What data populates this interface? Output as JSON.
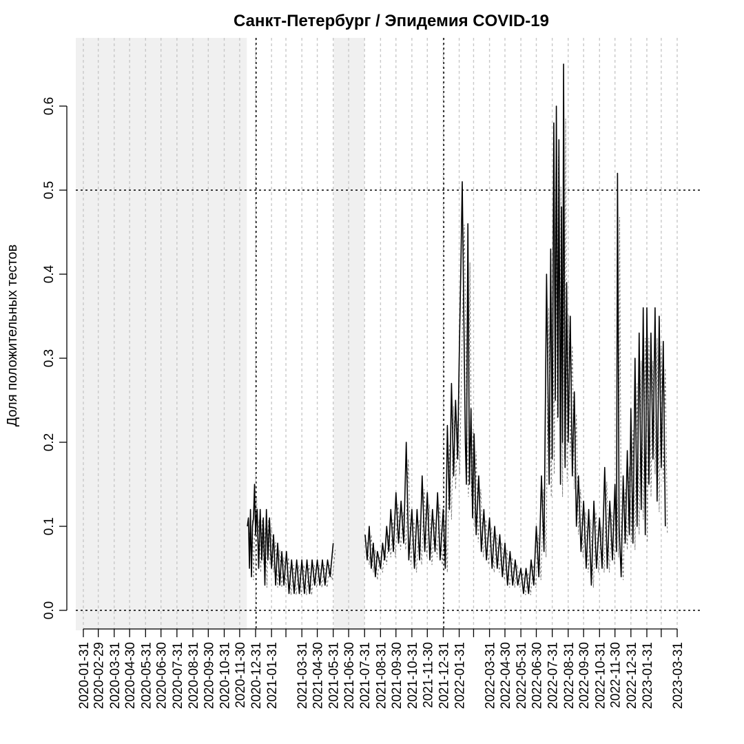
{
  "chart_data": {
    "type": "line",
    "title": "Санкт-Петербург / Эпидемия COVID-19",
    "xlabel": "",
    "ylabel": "Доля положительных тестов",
    "xlim": [
      "2020-01-31",
      "2023-03-31"
    ],
    "ylim": [
      0,
      0.65
    ],
    "y_ticks": [
      0.0,
      0.1,
      0.2,
      0.3,
      0.4,
      0.5,
      0.6
    ],
    "y_tick_labels": [
      "0.0",
      "0.1",
      "0.2",
      "0.3",
      "0.4",
      "0.5",
      "0.6"
    ],
    "x_tick_labels": [
      "2020-01-31",
      "2020-02-29",
      "2020-03-31",
      "2020-04-30",
      "2020-05-31",
      "2020-06-30",
      "2020-07-31",
      "2020-08-31",
      "2020-09-30",
      "2020-10-31",
      "2020-11-30",
      "2020-12-31",
      "2021-01-31",
      "2021-03-31",
      "2021-04-30",
      "2021-05-31",
      "2021-06-30",
      "2021-07-31",
      "2021-08-31",
      "2021-09-30",
      "2021-10-31",
      "2021-11-30",
      "2021-12-31",
      "2022-01-31",
      "2022-03-31",
      "2022-04-30",
      "2022-05-31",
      "2022-06-30",
      "2022-07-31",
      "2022-08-31",
      "2022-09-30",
      "2022-10-31",
      "2022-11-30",
      "2022-12-31",
      "2023-01-31",
      "2023-03-31"
    ],
    "shaded_ranges": [
      [
        "2020-01-31",
        "2020-12-14"
      ],
      [
        "2021-06-01",
        "2021-07-31"
      ]
    ],
    "reference_lines": {
      "horizontal": [
        0.0,
        0.5
      ],
      "vertical": [
        "2021-01-01",
        "2022-01-01"
      ]
    },
    "grid": "vertical dotted at month ends",
    "series": [
      {
        "style": "solid",
        "points": [
          [
            "2020-12-15",
            0.1
          ],
          [
            "2020-12-17",
            0.11
          ],
          [
            "2020-12-19",
            0.05
          ],
          [
            "2020-12-21",
            0.12
          ],
          [
            "2020-12-23",
            0.04
          ],
          [
            "2020-12-25",
            0.1
          ],
          [
            "2020-12-27",
            0.11
          ],
          [
            "2020-12-29",
            0.15
          ],
          [
            "2020-12-31",
            0.09
          ],
          [
            "2021-01-03",
            0.12
          ],
          [
            "2021-01-06",
            0.05
          ],
          [
            "2021-01-09",
            0.12
          ],
          [
            "2021-01-12",
            0.06
          ],
          [
            "2021-01-15",
            0.11
          ],
          [
            "2021-01-18",
            0.03
          ],
          [
            "2021-01-21",
            0.12
          ],
          [
            "2021-01-24",
            0.06
          ],
          [
            "2021-01-27",
            0.11
          ],
          [
            "2021-01-31",
            0.05
          ],
          [
            "2021-02-04",
            0.09
          ],
          [
            "2021-02-08",
            0.03
          ],
          [
            "2021-02-12",
            0.08
          ],
          [
            "2021-02-16",
            0.03
          ],
          [
            "2021-02-20",
            0.07
          ],
          [
            "2021-02-24",
            0.03
          ],
          [
            "2021-03-01",
            0.07
          ],
          [
            "2021-03-06",
            0.02
          ],
          [
            "2021-03-11",
            0.06
          ],
          [
            "2021-03-16",
            0.02
          ],
          [
            "2021-03-21",
            0.06
          ],
          [
            "2021-03-26",
            0.02
          ],
          [
            "2021-03-31",
            0.06
          ],
          [
            "2021-04-05",
            0.02
          ],
          [
            "2021-04-10",
            0.06
          ],
          [
            "2021-04-15",
            0.02
          ],
          [
            "2021-04-20",
            0.06
          ],
          [
            "2021-04-25",
            0.03
          ],
          [
            "2021-04-30",
            0.06
          ],
          [
            "2021-05-05",
            0.03
          ],
          [
            "2021-05-10",
            0.06
          ],
          [
            "2021-05-15",
            0.03
          ],
          [
            "2021-05-20",
            0.06
          ],
          [
            "2021-05-25",
            0.04
          ],
          [
            "2021-05-31",
            0.08
          ]
        ]
      },
      {
        "style": "solid",
        "points": [
          [
            "2021-08-01",
            0.09
          ],
          [
            "2021-08-05",
            0.06
          ],
          [
            "2021-08-09",
            0.1
          ],
          [
            "2021-08-13",
            0.05
          ],
          [
            "2021-08-17",
            0.08
          ],
          [
            "2021-08-21",
            0.04
          ],
          [
            "2021-08-25",
            0.07
          ],
          [
            "2021-08-31",
            0.05
          ],
          [
            "2021-09-04",
            0.08
          ],
          [
            "2021-09-08",
            0.06
          ],
          [
            "2021-09-12",
            0.1
          ],
          [
            "2021-09-16",
            0.07
          ],
          [
            "2021-09-20",
            0.12
          ],
          [
            "2021-09-25",
            0.07
          ],
          [
            "2021-09-30",
            0.14
          ],
          [
            "2021-10-05",
            0.08
          ],
          [
            "2021-10-10",
            0.13
          ],
          [
            "2021-10-15",
            0.08
          ],
          [
            "2021-10-20",
            0.2
          ],
          [
            "2021-10-25",
            0.06
          ],
          [
            "2021-10-31",
            0.12
          ],
          [
            "2021-11-05",
            0.05
          ],
          [
            "2021-11-10",
            0.12
          ],
          [
            "2021-11-15",
            0.06
          ],
          [
            "2021-11-20",
            0.16
          ],
          [
            "2021-11-25",
            0.07
          ],
          [
            "2021-11-30",
            0.14
          ],
          [
            "2021-12-05",
            0.06
          ],
          [
            "2021-12-10",
            0.12
          ],
          [
            "2021-12-15",
            0.07
          ],
          [
            "2021-12-20",
            0.14
          ],
          [
            "2021-12-25",
            0.06
          ],
          [
            "2021-12-31",
            0.12
          ],
          [
            "2022-01-04",
            0.05
          ],
          [
            "2022-01-08",
            0.22
          ],
          [
            "2022-01-12",
            0.12
          ],
          [
            "2022-01-16",
            0.27
          ],
          [
            "2022-01-20",
            0.16
          ],
          [
            "2022-01-24",
            0.25
          ],
          [
            "2022-01-28",
            0.18
          ],
          [
            "2022-01-31",
            0.3
          ],
          [
            "2022-02-03",
            0.4
          ],
          [
            "2022-02-06",
            0.51
          ],
          [
            "2022-02-09",
            0.35
          ],
          [
            "2022-02-12",
            0.2
          ],
          [
            "2022-02-14",
            0.15
          ],
          [
            "2022-02-17",
            0.46
          ],
          [
            "2022-02-20",
            0.15
          ],
          [
            "2022-02-23",
            0.24
          ],
          [
            "2022-02-26",
            0.11
          ],
          [
            "2022-03-01",
            0.21
          ],
          [
            "2022-03-05",
            0.09
          ],
          [
            "2022-03-10",
            0.16
          ],
          [
            "2022-03-15",
            0.07
          ],
          [
            "2022-03-20",
            0.12
          ],
          [
            "2022-03-25",
            0.06
          ],
          [
            "2022-03-31",
            0.11
          ],
          [
            "2022-04-05",
            0.05
          ],
          [
            "2022-04-10",
            0.1
          ],
          [
            "2022-04-15",
            0.05
          ],
          [
            "2022-04-20",
            0.09
          ],
          [
            "2022-04-25",
            0.04
          ],
          [
            "2022-04-30",
            0.08
          ],
          [
            "2022-05-05",
            0.03
          ],
          [
            "2022-05-10",
            0.07
          ],
          [
            "2022-05-15",
            0.03
          ],
          [
            "2022-05-20",
            0.06
          ],
          [
            "2022-05-25",
            0.03
          ],
          [
            "2022-05-31",
            0.05
          ],
          [
            "2022-06-05",
            0.02
          ],
          [
            "2022-06-10",
            0.05
          ],
          [
            "2022-06-15",
            0.02
          ],
          [
            "2022-06-20",
            0.06
          ],
          [
            "2022-06-25",
            0.03
          ],
          [
            "2022-06-30",
            0.1
          ],
          [
            "2022-07-05",
            0.04
          ],
          [
            "2022-07-10",
            0.16
          ],
          [
            "2022-07-15",
            0.07
          ],
          [
            "2022-07-20",
            0.4
          ],
          [
            "2022-07-25",
            0.15
          ],
          [
            "2022-07-28",
            0.43
          ],
          [
            "2022-07-31",
            0.18
          ],
          [
            "2022-08-03",
            0.58
          ],
          [
            "2022-08-06",
            0.25
          ],
          [
            "2022-08-08",
            0.6
          ],
          [
            "2022-08-11",
            0.23
          ],
          [
            "2022-08-13",
            0.56
          ],
          [
            "2022-08-16",
            0.15
          ],
          [
            "2022-08-18",
            0.48
          ],
          [
            "2022-08-20",
            0.2
          ],
          [
            "2022-08-22",
            0.65
          ],
          [
            "2022-08-25",
            0.17
          ],
          [
            "2022-08-28",
            0.39
          ],
          [
            "2022-08-31",
            0.2
          ],
          [
            "2022-09-04",
            0.35
          ],
          [
            "2022-09-08",
            0.16
          ],
          [
            "2022-09-12",
            0.26
          ],
          [
            "2022-09-16",
            0.1
          ],
          [
            "2022-09-20",
            0.16
          ],
          [
            "2022-09-25",
            0.07
          ],
          [
            "2022-09-30",
            0.13
          ],
          [
            "2022-10-05",
            0.05
          ],
          [
            "2022-10-10",
            0.12
          ],
          [
            "2022-10-15",
            0.03
          ],
          [
            "2022-10-20",
            0.13
          ],
          [
            "2022-10-25",
            0.05
          ],
          [
            "2022-10-31",
            0.11
          ],
          [
            "2022-11-05",
            0.05
          ],
          [
            "2022-11-10",
            0.17
          ],
          [
            "2022-11-15",
            0.05
          ],
          [
            "2022-11-20",
            0.13
          ],
          [
            "2022-11-25",
            0.06
          ],
          [
            "2022-11-30",
            0.15
          ],
          [
            "2022-12-03",
            0.07
          ],
          [
            "2022-12-05",
            0.52
          ],
          [
            "2022-12-08",
            0.1
          ],
          [
            "2022-12-12",
            0.04
          ],
          [
            "2022-12-16",
            0.16
          ],
          [
            "2022-12-20",
            0.08
          ],
          [
            "2022-12-24",
            0.19
          ],
          [
            "2022-12-28",
            0.09
          ],
          [
            "2022-12-31",
            0.24
          ],
          [
            "2023-01-04",
            0.08
          ],
          [
            "2023-01-08",
            0.3
          ],
          [
            "2023-01-12",
            0.1
          ],
          [
            "2023-01-16",
            0.33
          ],
          [
            "2023-01-20",
            0.12
          ],
          [
            "2023-01-24",
            0.36
          ],
          [
            "2023-01-28",
            0.09
          ],
          [
            "2023-01-31",
            0.36
          ],
          [
            "2023-02-04",
            0.15
          ],
          [
            "2023-02-08",
            0.33
          ],
          [
            "2023-02-12",
            0.18
          ],
          [
            "2023-02-16",
            0.36
          ],
          [
            "2023-02-20",
            0.13
          ],
          [
            "2023-02-24",
            0.35
          ],
          [
            "2023-02-28",
            0.17
          ],
          [
            "2023-03-04",
            0.32
          ],
          [
            "2023-03-08",
            0.1
          ]
        ]
      }
    ]
  }
}
